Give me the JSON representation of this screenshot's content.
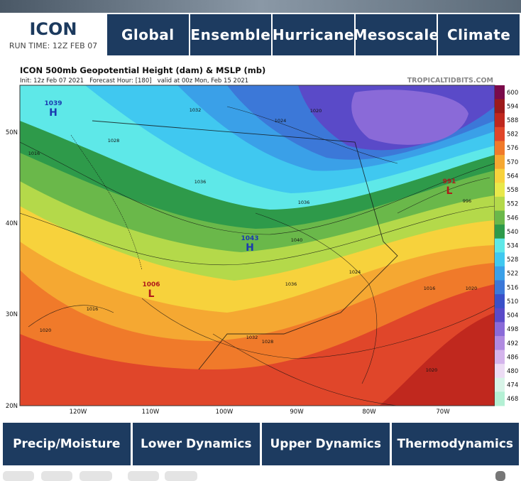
{
  "header": {
    "model": "ICON",
    "run_time": "RUN TIME: 12Z FEB 07"
  },
  "nav": [
    "Global",
    "Ensemble",
    "Hurricane",
    "Mesoscale",
    "Climate"
  ],
  "map": {
    "title": "ICON 500mb Geopotential Height (dam) & MSLP (mb)",
    "subtitle": "Init: 12z Feb 07 2021   Forecast Hour: [180]   valid at 00z Mon, Feb 15 2021",
    "credit": "TROPICALTIDBITS.COM",
    "lat_labels": [
      "50N",
      "40N",
      "30N",
      "20N"
    ],
    "lon_labels": [
      "120W",
      "110W",
      "100W",
      "90W",
      "80W",
      "70W"
    ],
    "colorbar": {
      "levels": [
        600,
        594,
        588,
        582,
        576,
        570,
        564,
        558,
        552,
        546,
        540,
        534,
        528,
        522,
        516,
        510,
        504,
        498,
        492,
        486,
        480,
        474,
        468
      ],
      "colors": [
        "#7a0a4a",
        "#9c1a1a",
        "#c0281e",
        "#e0462a",
        "#f07a2a",
        "#f5a832",
        "#f7d23c",
        "#e8e84a",
        "#b4d94a",
        "#6ab84a",
        "#2e9a4a",
        "#5ee8e8",
        "#40c8f0",
        "#3aa0e8",
        "#3c78d8",
        "#3a50c8",
        "#5a4ac8",
        "#8a6ad8",
        "#b08ae0",
        "#d4b4ec",
        "#ecdcf4",
        "#d8f4e8",
        "#b4f0d4"
      ]
    },
    "centers": [
      {
        "symbol": "H",
        "pressure": "1043"
      },
      {
        "symbol": "H",
        "pressure": "1039"
      },
      {
        "symbol": "L",
        "pressure": "1006"
      },
      {
        "symbol": "L",
        "pressure": "991"
      }
    ],
    "contour_labels": [
      "1032",
      "1028",
      "1016",
      "1036",
      "1036",
      "1024",
      "1020",
      "1040",
      "1024",
      "1036",
      "1032",
      "1028",
      "1016",
      "1020",
      "1020",
      "1020",
      "996",
      "1016"
    ]
  },
  "categories": [
    "Precip/Moisture",
    "Lower Dynamics",
    "Upper Dynamics",
    "Thermodynamics"
  ]
}
